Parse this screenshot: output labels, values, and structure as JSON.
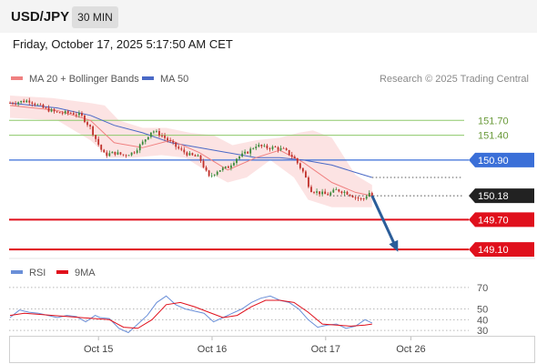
{
  "header": {
    "pair": "USD/JPY",
    "timeframe": "30 MIN",
    "datetime": "Friday, October 17, 2025 5:17:50 AM CET"
  },
  "legend": {
    "ma20": "MA 20 + Bollinger Bands",
    "ma50": "MA 50",
    "credit": "Research © 2025 Trading Central",
    "rsi": "RSI",
    "ma9": "9MA"
  },
  "colors": {
    "ma20": "#f08080",
    "bollinger_fill": "#fbd9d9",
    "ma50": "#4a69c6",
    "green_level": "#8dc86a",
    "blue_level": "#3a6fd8",
    "red_level": "#e0101c",
    "current_badge": "#222222",
    "arrow": "#2b5d99",
    "candle_up": "#3a8a3a",
    "candle_down": "#c0302a"
  },
  "chart_data": [
    {
      "type": "candlestick",
      "title": "USD/JPY 30 MIN",
      "y_range": [
        148.9,
        152.2
      ],
      "x_labels": [
        "Oct 15",
        "Oct 16",
        "Oct 17",
        "Oct 26"
      ],
      "x_label_index": [
        42,
        90,
        138,
        174
      ],
      "n_bars": 132,
      "levels": [
        {
          "value": 151.7,
          "label": "151.70",
          "kind": "resistance_minor"
        },
        {
          "value": 151.4,
          "label": "151.40",
          "kind": "resistance_minor"
        },
        {
          "value": 150.9,
          "label": "150.90",
          "kind": "resistance_pivot"
        },
        {
          "value": 150.18,
          "label": "150.18",
          "kind": "current"
        },
        {
          "value": 149.7,
          "label": "149.70",
          "kind": "support"
        },
        {
          "value": 149.1,
          "label": "149.10",
          "kind": "support"
        }
      ],
      "close_path": [
        [
          0,
          152.05
        ],
        [
          8,
          152.1
        ],
        [
          14,
          151.95
        ],
        [
          20,
          151.85
        ],
        [
          26,
          151.85
        ],
        [
          30,
          151.8
        ],
        [
          34,
          151.55
        ],
        [
          38,
          151.15
        ],
        [
          40,
          151.0
        ],
        [
          44,
          151.05
        ],
        [
          48,
          151.0
        ],
        [
          52,
          151.05
        ],
        [
          56,
          151.25
        ],
        [
          60,
          151.5
        ],
        [
          64,
          151.4
        ],
        [
          68,
          151.25
        ],
        [
          72,
          151.1
        ],
        [
          76,
          151.0
        ],
        [
          80,
          150.95
        ],
        [
          84,
          150.55
        ],
        [
          88,
          150.7
        ],
        [
          92,
          150.75
        ],
        [
          96,
          150.95
        ],
        [
          100,
          151.05
        ],
        [
          104,
          151.2
        ],
        [
          108,
          151.15
        ],
        [
          112,
          151.15
        ],
        [
          116,
          151.1
        ],
        [
          120,
          150.95
        ],
        [
          124,
          150.65
        ],
        [
          127,
          150.3
        ],
        [
          130,
          150.25
        ],
        [
          134,
          150.2
        ],
        [
          138,
          150.3
        ],
        [
          142,
          150.25
        ],
        [
          146,
          150.15
        ],
        [
          149,
          150.1
        ],
        [
          152,
          150.25
        ],
        [
          153,
          150.18
        ]
      ],
      "ma20_path": [
        [
          0,
          152.0
        ],
        [
          20,
          151.9
        ],
        [
          34,
          151.7
        ],
        [
          44,
          151.25
        ],
        [
          56,
          151.15
        ],
        [
          68,
          151.3
        ],
        [
          80,
          151.05
        ],
        [
          92,
          150.7
        ],
        [
          104,
          150.95
        ],
        [
          114,
          151.1
        ],
        [
          124,
          150.85
        ],
        [
          136,
          150.45
        ],
        [
          146,
          150.25
        ],
        [
          153,
          150.18
        ]
      ],
      "bollinger_upper_path": [
        [
          0,
          152.2
        ],
        [
          18,
          152.15
        ],
        [
          34,
          152.05
        ],
        [
          40,
          152.0
        ],
        [
          46,
          151.7
        ],
        [
          56,
          151.55
        ],
        [
          66,
          151.55
        ],
        [
          76,
          151.45
        ],
        [
          86,
          151.4
        ],
        [
          94,
          151.2
        ],
        [
          104,
          151.3
        ],
        [
          114,
          151.35
        ],
        [
          122,
          151.45
        ],
        [
          128,
          151.5
        ],
        [
          136,
          151.35
        ],
        [
          146,
          150.6
        ],
        [
          153,
          150.4
        ]
      ],
      "bollinger_lower_path": [
        [
          0,
          151.75
        ],
        [
          20,
          151.7
        ],
        [
          34,
          151.3
        ],
        [
          42,
          150.95
        ],
        [
          52,
          150.95
        ],
        [
          64,
          151.0
        ],
        [
          74,
          150.95
        ],
        [
          84,
          150.65
        ],
        [
          92,
          150.45
        ],
        [
          100,
          150.55
        ],
        [
          110,
          150.9
        ],
        [
          120,
          150.55
        ],
        [
          126,
          150.1
        ],
        [
          136,
          149.95
        ],
        [
          146,
          149.95
        ],
        [
          153,
          149.95
        ]
      ],
      "ma50_path": [
        [
          0,
          152.05
        ],
        [
          20,
          151.95
        ],
        [
          34,
          151.8
        ],
        [
          44,
          151.6
        ],
        [
          56,
          151.45
        ],
        [
          68,
          151.25
        ],
        [
          80,
          151.15
        ],
        [
          92,
          151.05
        ],
        [
          104,
          150.95
        ],
        [
          114,
          150.95
        ],
        [
          124,
          150.9
        ],
        [
          136,
          150.8
        ],
        [
          146,
          150.65
        ],
        [
          153,
          150.55
        ]
      ],
      "forecast_arrow": {
        "from": [
          153,
          150.18
        ],
        "to": [
          163,
          149.15
        ]
      }
    },
    {
      "type": "line",
      "title": "RSI",
      "y_range": [
        20,
        80
      ],
      "y_ticks": [
        70,
        50,
        40,
        30
      ],
      "series": [
        {
          "name": "RSI",
          "points": [
            [
              0,
              42
            ],
            [
              4,
              49
            ],
            [
              8,
              47
            ],
            [
              12,
              46
            ],
            [
              16,
              44
            ],
            [
              20,
              42
            ],
            [
              24,
              44
            ],
            [
              28,
              43
            ],
            [
              32,
              38
            ],
            [
              36,
              44
            ],
            [
              38,
              42
            ],
            [
              42,
              41
            ],
            [
              46,
              32
            ],
            [
              50,
              28
            ],
            [
              54,
              36
            ],
            [
              58,
              44
            ],
            [
              62,
              56
            ],
            [
              66,
              62
            ],
            [
              70,
              54
            ],
            [
              74,
              50
            ],
            [
              78,
              48
            ],
            [
              82,
              46
            ],
            [
              86,
              38
            ],
            [
              90,
              42
            ],
            [
              94,
              46
            ],
            [
              98,
              50
            ],
            [
              102,
              56
            ],
            [
              106,
              60
            ],
            [
              110,
              62
            ],
            [
              114,
              58
            ],
            [
              118,
              56
            ],
            [
              122,
              50
            ],
            [
              126,
              40
            ],
            [
              130,
              33
            ],
            [
              134,
              35
            ],
            [
              138,
              36
            ],
            [
              142,
              32
            ],
            [
              146,
              34
            ],
            [
              150,
              40
            ],
            [
              153,
              37
            ]
          ]
        },
        {
          "name": "9MA",
          "points": [
            [
              0,
              44
            ],
            [
              6,
              46
            ],
            [
              12,
              45
            ],
            [
              18,
              44
            ],
            [
              24,
              43
            ],
            [
              30,
              42
            ],
            [
              36,
              41
            ],
            [
              42,
              40
            ],
            [
              48,
              33
            ],
            [
              54,
              32
            ],
            [
              60,
              40
            ],
            [
              66,
              54
            ],
            [
              72,
              56
            ],
            [
              78,
              52
            ],
            [
              84,
              47
            ],
            [
              90,
              42
            ],
            [
              96,
              44
            ],
            [
              102,
              52
            ],
            [
              108,
              58
            ],
            [
              114,
              58
            ],
            [
              120,
              56
            ],
            [
              126,
              47
            ],
            [
              132,
              36
            ],
            [
              138,
              35
            ],
            [
              144,
              34
            ],
            [
              150,
              35
            ],
            [
              153,
              36
            ]
          ]
        }
      ]
    }
  ]
}
